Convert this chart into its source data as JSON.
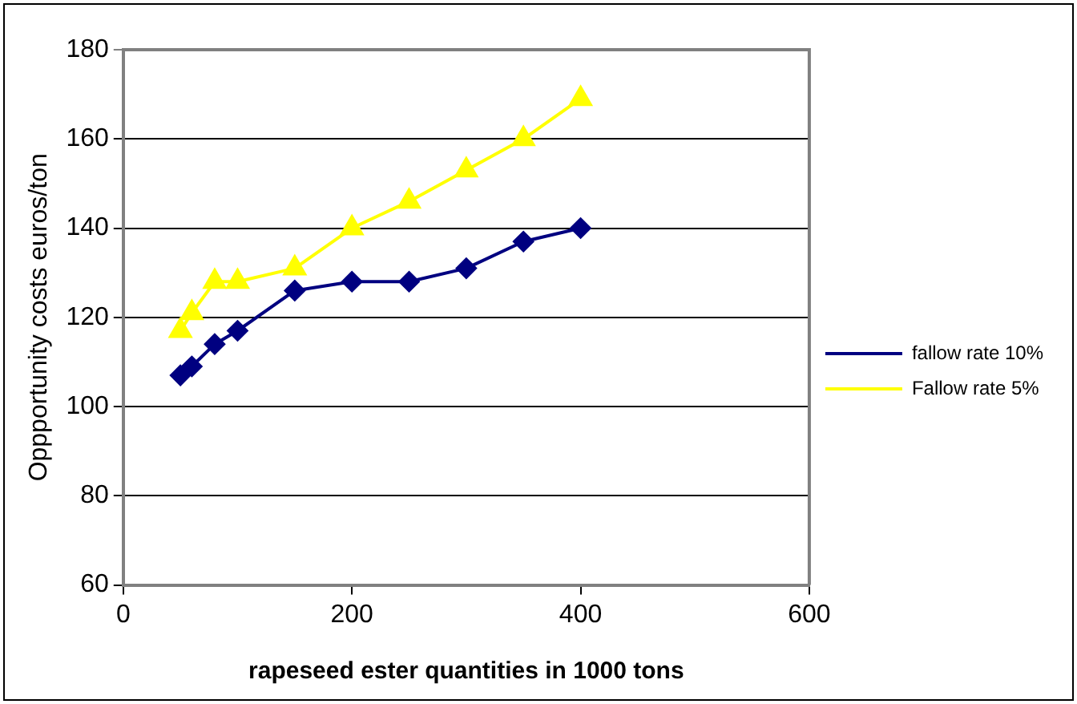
{
  "chart_data": {
    "type": "line",
    "xlabel": "rapeseed ester quantities in 1000 tons",
    "ylabel": "Oppportunity costs euros/ton",
    "x": [
      50,
      60,
      80,
      100,
      150,
      200,
      250,
      300,
      350,
      400
    ],
    "series": [
      {
        "name": "fallow rate 10%",
        "color": "#000080",
        "marker": "diamond",
        "values": [
          107,
          109,
          114,
          117,
          126,
          128,
          128,
          131,
          137,
          140
        ]
      },
      {
        "name": "Fallow rate 5%",
        "color": "#ffff00",
        "marker": "triangle",
        "values": [
          117,
          121,
          128,
          128,
          131,
          140,
          146,
          153,
          160,
          169
        ]
      }
    ],
    "xlim": [
      0,
      600
    ],
    "xticks": [
      0,
      200,
      400,
      600
    ],
    "ylim": [
      60,
      180
    ],
    "yticks": [
      60,
      80,
      100,
      120,
      140,
      160,
      180
    ],
    "grid": "y",
    "legend": "right",
    "line_style": "solid"
  }
}
